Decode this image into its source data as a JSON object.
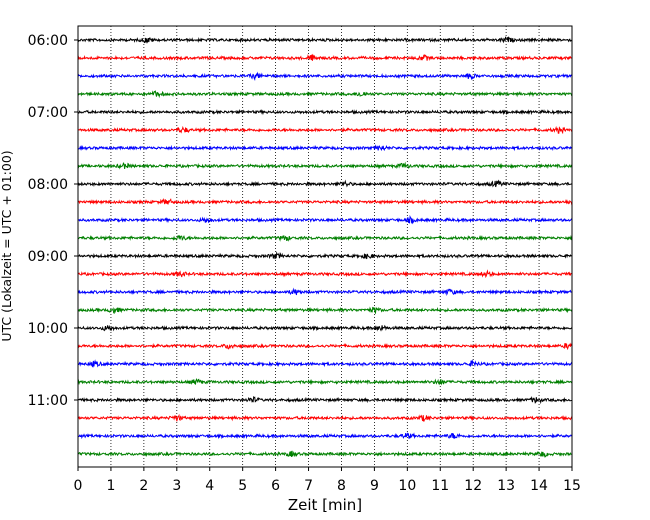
{
  "chart_data": {
    "type": "line",
    "title": "",
    "xlabel": "Zeit  [min]",
    "ylabel": "UTC (Lokalzeit = UTC + 01:00)",
    "xlim": [
      0,
      15
    ],
    "x_ticks": [
      "0",
      "1",
      "2",
      "3",
      "4",
      "5",
      "6",
      "7",
      "8",
      "9",
      "10",
      "11",
      "12",
      "13",
      "14",
      "15"
    ],
    "y_ticks": [
      "06:00",
      "07:00",
      "08:00",
      "09:00",
      "10:00",
      "11:00"
    ],
    "trace_start": "06:00",
    "trace_interval_minutes": 15,
    "trace_count": 24,
    "trace_colors": [
      "#000000",
      "#ff0000",
      "#0000ff",
      "#008000"
    ],
    "grid": {
      "vertical_dotted": true
    },
    "noise_bursts": [
      {
        "trace": 0,
        "x": 2.1
      },
      {
        "trace": 0,
        "x": 13.0
      },
      {
        "trace": 1,
        "x": 7.1
      },
      {
        "trace": 1,
        "x": 10.5
      },
      {
        "trace": 2,
        "x": 5.4
      },
      {
        "trace": 2,
        "x": 11.9
      },
      {
        "trace": 3,
        "x": 2.4
      },
      {
        "trace": 3,
        "x": 8.6
      },
      {
        "trace": 5,
        "x": 3.2
      },
      {
        "trace": 5,
        "x": 14.6
      },
      {
        "trace": 6,
        "x": 9.2
      },
      {
        "trace": 7,
        "x": 1.4
      },
      {
        "trace": 7,
        "x": 9.9
      },
      {
        "trace": 8,
        "x": 8.1
      },
      {
        "trace": 8,
        "x": 12.7
      },
      {
        "trace": 9,
        "x": 2.7
      },
      {
        "trace": 9,
        "x": 15.0
      },
      {
        "trace": 10,
        "x": 3.9
      },
      {
        "trace": 10,
        "x": 10.1
      },
      {
        "trace": 11,
        "x": 3.1
      },
      {
        "trace": 11,
        "x": 6.3
      },
      {
        "trace": 12,
        "x": 6.0
      },
      {
        "trace": 12,
        "x": 8.8
      },
      {
        "trace": 13,
        "x": 3.1
      },
      {
        "trace": 13,
        "x": 12.4
      },
      {
        "trace": 14,
        "x": 6.6
      },
      {
        "trace": 14,
        "x": 11.3
      },
      {
        "trace": 15,
        "x": 1.1
      },
      {
        "trace": 15,
        "x": 9.0
      },
      {
        "trace": 16,
        "x": 0.9
      },
      {
        "trace": 16,
        "x": 9.2
      },
      {
        "trace": 17,
        "x": 4.6
      },
      {
        "trace": 17,
        "x": 14.9
      },
      {
        "trace": 18,
        "x": 0.5
      },
      {
        "trace": 18,
        "x": 12.0
      },
      {
        "trace": 19,
        "x": 3.6
      },
      {
        "trace": 19,
        "x": 11.0
      },
      {
        "trace": 20,
        "x": 5.3
      },
      {
        "trace": 20,
        "x": 13.9
      },
      {
        "trace": 21,
        "x": 3.0
      },
      {
        "trace": 21,
        "x": 10.5
      },
      {
        "trace": 22,
        "x": 10.0
      },
      {
        "trace": 22,
        "x": 11.4
      },
      {
        "trace": 23,
        "x": 6.5
      },
      {
        "trace": 23,
        "x": 14.1
      }
    ]
  }
}
